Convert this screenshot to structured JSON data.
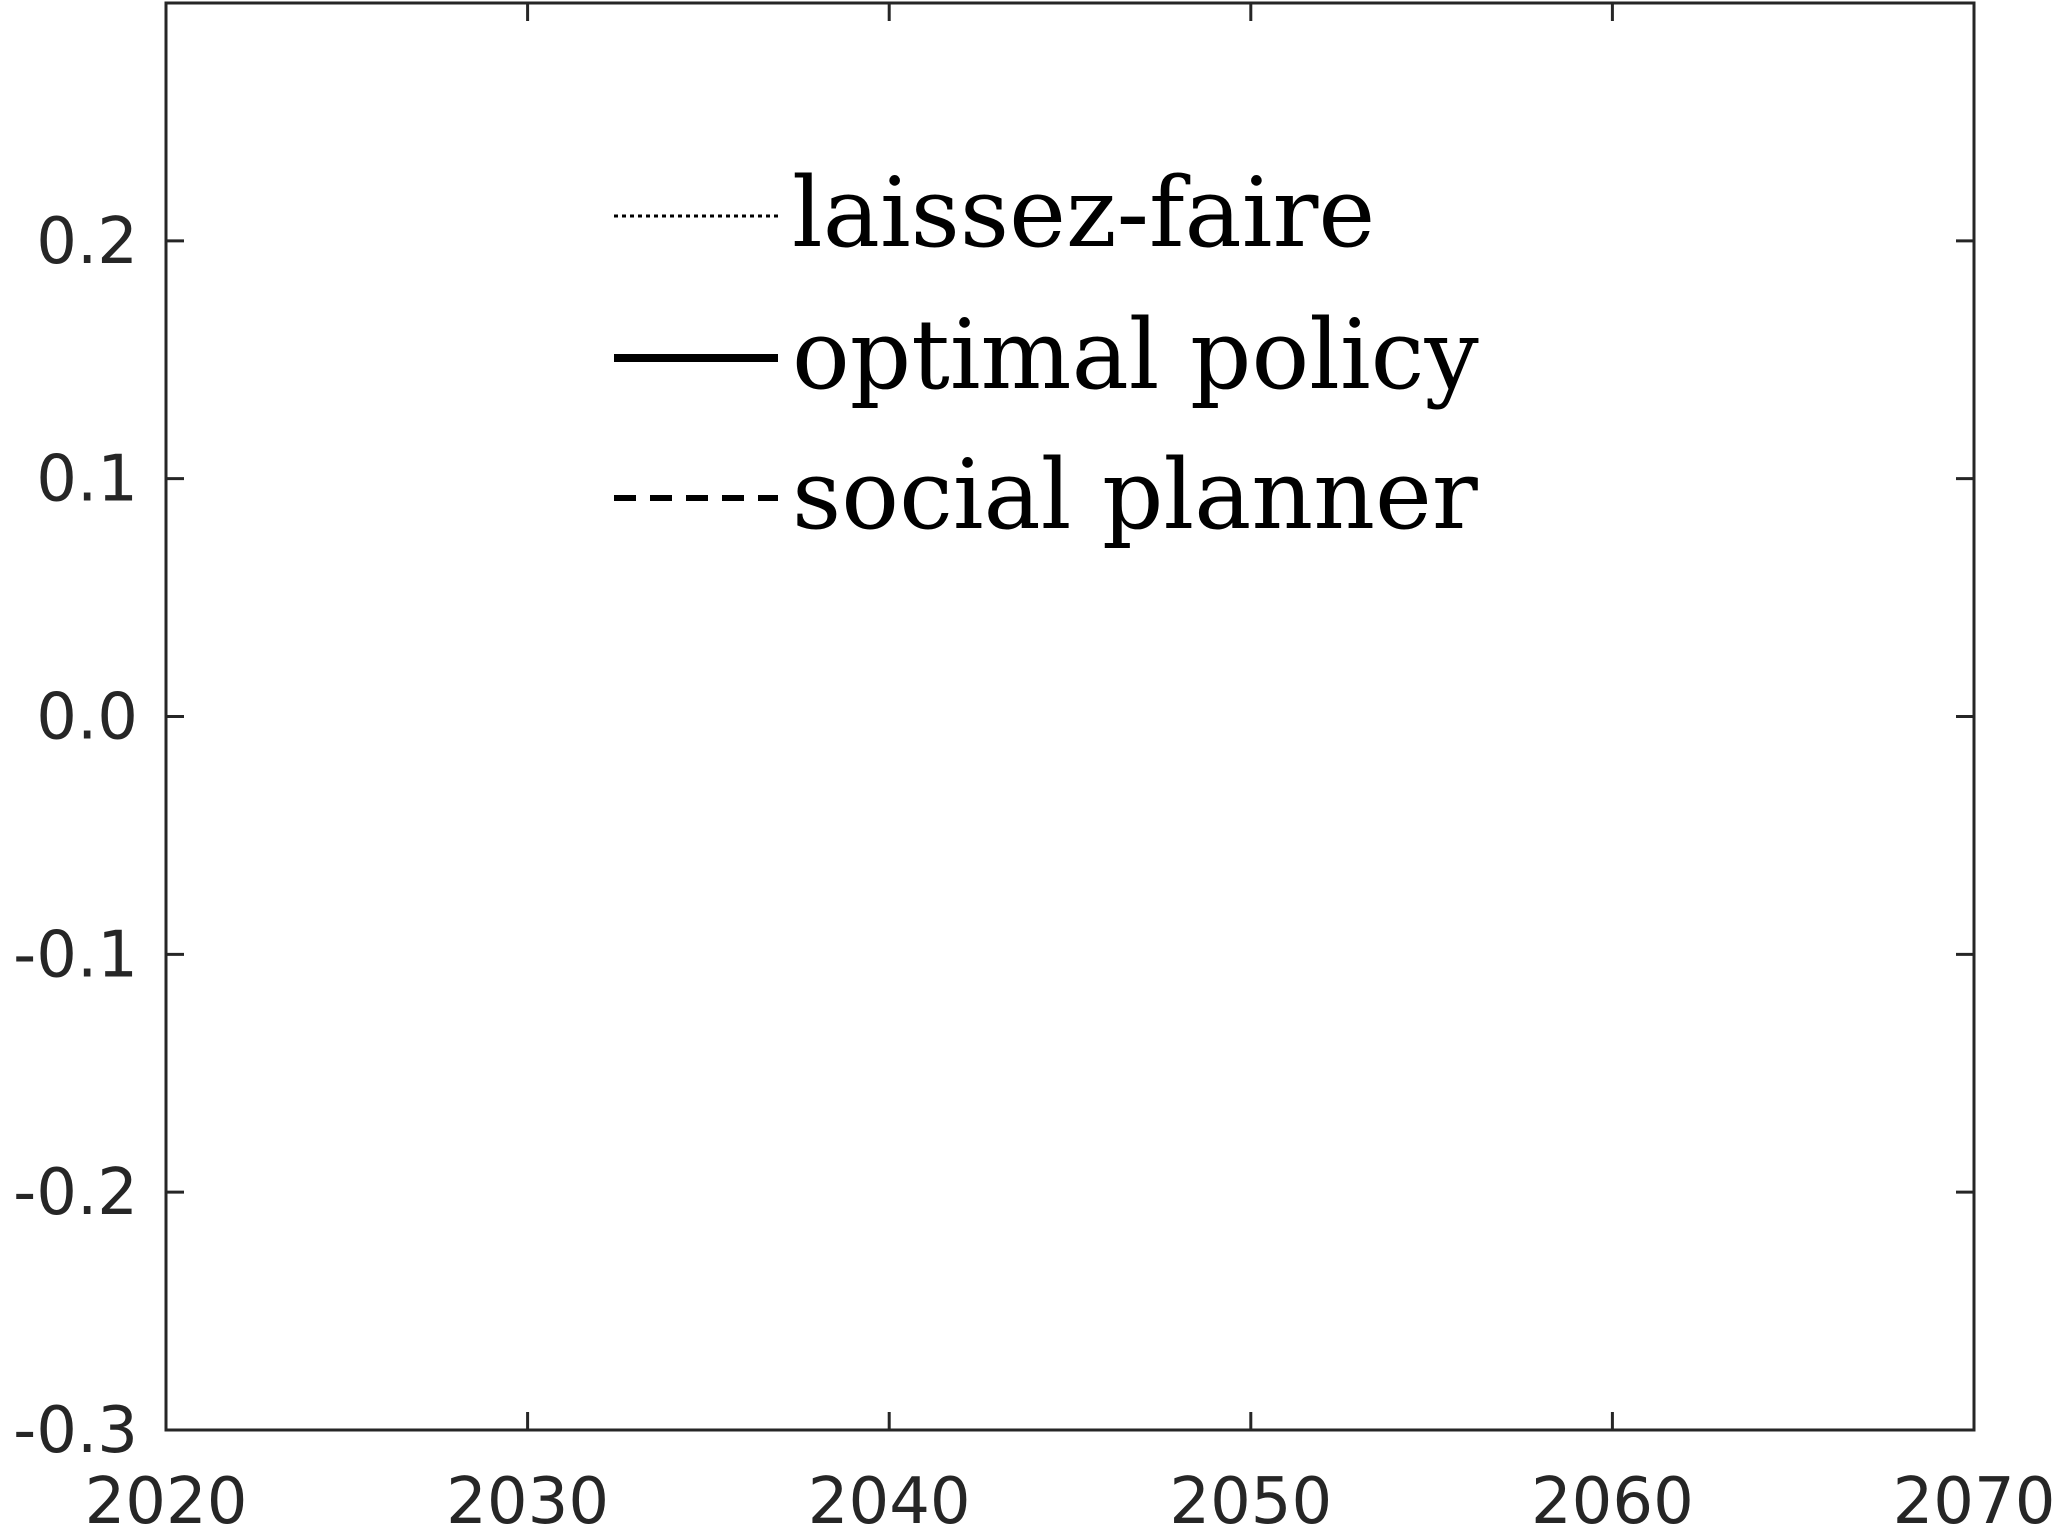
{
  "chart_data": {
    "type": "line",
    "title": "",
    "xlabel": "",
    "ylabel": "",
    "xlim": [
      2020,
      2070
    ],
    "ylim": [
      -0.3,
      0.3
    ],
    "xticks": [
      2020,
      2030,
      2040,
      2050,
      2060,
      2070
    ],
    "xtick_labels": [
      "2020",
      "2030",
      "2040",
      "2050",
      "2060",
      "2070"
    ],
    "yticks": [
      -0.3,
      -0.2,
      -0.1,
      0.0,
      0.1,
      0.2
    ],
    "ytick_labels": [
      "-0.3",
      "-0.2",
      "-0.1",
      "0.0",
      "0.1",
      "0.2"
    ],
    "grid": false,
    "legend_position": "top-center",
    "series": [
      {
        "name": "laissez-faire",
        "line_style": "dotted",
        "color": "#000000",
        "x": [],
        "y": []
      },
      {
        "name": "optimal policy",
        "line_style": "solid",
        "color": "#000000",
        "x": [],
        "y": []
      },
      {
        "name": "social planner",
        "line_style": "dashed",
        "color": "#000000",
        "x": [],
        "y": []
      }
    ]
  }
}
